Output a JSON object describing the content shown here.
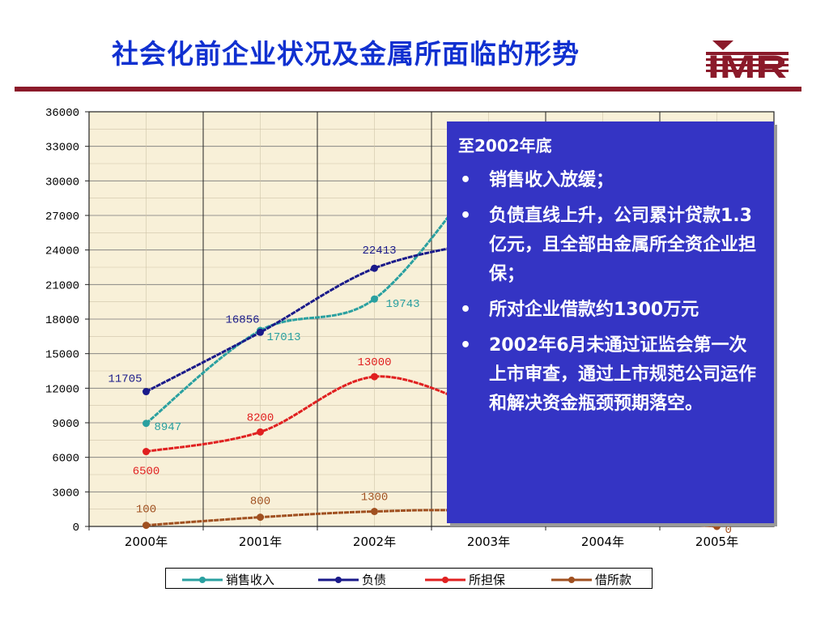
{
  "slide": {
    "title": "社会化前企业状况及金属所面临的形势",
    "logo_text": "IMR",
    "brand_color": "#8b1a2a",
    "title_color": "#1030d0"
  },
  "chart_data": {
    "type": "line",
    "categories": [
      "2000年",
      "2001年",
      "2002年",
      "2003年",
      "2004年",
      "2005年"
    ],
    "ylim": [
      0,
      36000
    ],
    "yticks": [
      0,
      3000,
      6000,
      9000,
      12000,
      15000,
      18000,
      21000,
      24000,
      27000,
      30000,
      33000,
      36000
    ],
    "grid": true,
    "legend_position": "bottom",
    "series": [
      {
        "name": "销售收入",
        "color": "#2aa0a0",
        "values": [
          8947,
          17013,
          19743,
          31500,
          null,
          null
        ],
        "labels": [
          "8947",
          "17013",
          "19743",
          "",
          "",
          ""
        ]
      },
      {
        "name": "负债",
        "color": "#1a1a8a",
        "values": [
          11705,
          16856,
          22413,
          24800,
          null,
          null
        ],
        "labels": [
          "11705",
          "16856",
          "22413",
          "",
          "",
          ""
        ]
      },
      {
        "name": "所担保",
        "color": "#e02020",
        "values": [
          6500,
          8200,
          13000,
          10000,
          null,
          null
        ],
        "labels": [
          "6500",
          "8200",
          "13000",
          "",
          "",
          ""
        ]
      },
      {
        "name": "借所款",
        "color": "#a05020",
        "values": [
          100,
          800,
          1300,
          1300,
          null,
          0
        ],
        "labels": [
          "100",
          "800",
          "1300",
          "",
          "",
          "0"
        ]
      }
    ]
  },
  "info_box": {
    "heading": "至2002年底",
    "bullets": [
      "销售收入放缓；",
      "负债直线上升，公司累计贷款1.3亿元，且全部由金属所全资企业担保；",
      "所对企业借款约1300万元",
      "2002年6月未通过证监会第一次上市审查，通过上市规范公司运作和解决资金瓶颈预期落空。"
    ],
    "background_color": "#3434c4"
  }
}
